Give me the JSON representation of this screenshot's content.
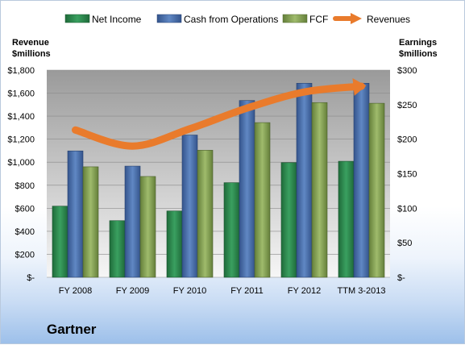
{
  "company": "Gartner",
  "colors": {
    "net_income": "#2e8a4e",
    "cash_from_operations": "#4f73b0",
    "fcf": "#8aa85a",
    "revenues": "#e97b2c"
  },
  "chart_data": {
    "type": "bar",
    "categories": [
      "FY 2008",
      "FY 2009",
      "FY 2010",
      "FY 2011",
      "FY 2012",
      "TTM 3-2013"
    ],
    "series": [
      {
        "name": "Net Income",
        "axis": "right",
        "values": [
          103,
          82,
          96,
          137,
          166,
          168
        ]
      },
      {
        "name": "Cash from Operations",
        "axis": "right",
        "values": [
          183,
          161,
          206,
          256,
          281,
          281
        ]
      },
      {
        "name": "FCF",
        "axis": "right",
        "values": [
          160,
          146,
          184,
          224,
          253,
          252
        ]
      },
      {
        "name": "Revenues",
        "axis": "left",
        "type": "line",
        "values": [
          1280,
          1140,
          1290,
          1470,
          1610,
          1660
        ]
      }
    ],
    "left_axis": {
      "title_line1": "Revenue",
      "title_line2": "$millions",
      "ylim": [
        0,
        1800
      ],
      "ticks": [
        0,
        200,
        400,
        600,
        800,
        1000,
        1200,
        1400,
        1600,
        1800
      ],
      "tick_labels": [
        "$-",
        "$200",
        "$400",
        "$600",
        "$800",
        "$1,000",
        "$1,200",
        "$1,400",
        "$1,600",
        "$1,800"
      ]
    },
    "right_axis": {
      "title_line1": "Earnings",
      "title_line2": "$millions",
      "ylim": [
        0,
        300
      ],
      "ticks": [
        0,
        50,
        100,
        150,
        200,
        250,
        300
      ],
      "tick_labels": [
        "$-",
        "$50",
        "$100",
        "$150",
        "$200",
        "$250",
        "$300"
      ]
    },
    "legend": {
      "placement": "top",
      "entries": [
        "Net Income",
        "Cash from Operations",
        "FCF",
        "Revenues"
      ]
    },
    "grid": true
  }
}
